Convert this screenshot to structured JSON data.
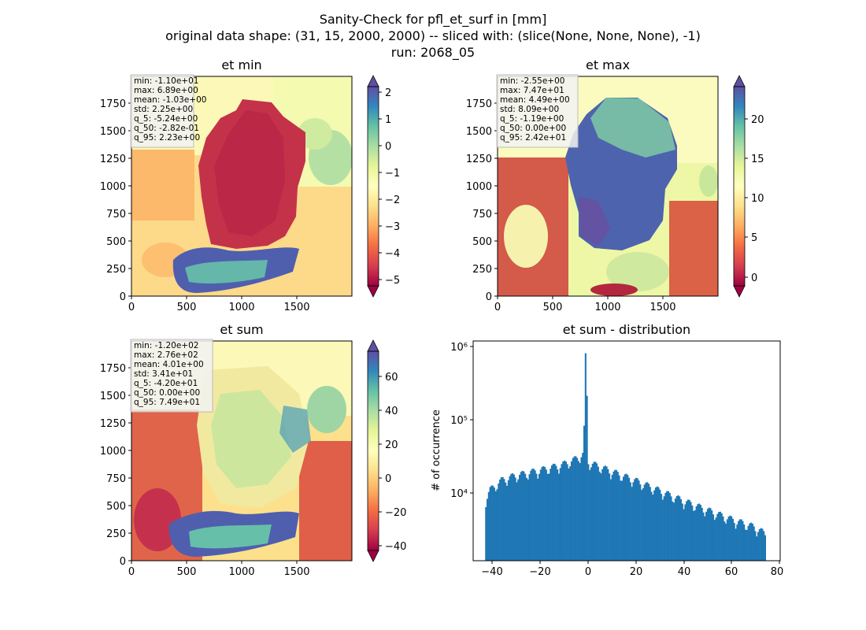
{
  "figure": {
    "title_lines": [
      "Sanity-Check for pfl_et_surf in [mm]",
      "original data shape: (31, 15, 2000, 2000) -- sliced with: (slice(None, None, None), -1)",
      "run: 2068_05"
    ]
  },
  "chart_data": [
    {
      "type": "heatmap",
      "title": "et min",
      "xlim": [
        0,
        2000
      ],
      "ylim": [
        0,
        2000
      ],
      "x_ticks": [
        "0",
        "500",
        "1000",
        "1500"
      ],
      "y_ticks": [
        "0",
        "250",
        "500",
        "750",
        "1000",
        "1250",
        "1500",
        "1750"
      ],
      "colormap": "Spectral",
      "colorbar": {
        "range": [
          -5.4,
          2.4
        ],
        "ticks": [
          "2",
          "1",
          "0",
          "−1",
          "−2",
          "−3",
          "−4",
          "−5"
        ],
        "extend": "both"
      },
      "stats": [
        "min: -1.10e+01",
        "max: 6.89e+00",
        "mean: -1.03e+00",
        "std: 2.25e+00",
        "q_5: -5.24e+00",
        "q_50: -2.82e-01",
        "q_95: 2.23e+00"
      ]
    },
    {
      "type": "heatmap",
      "title": "et max",
      "xlim": [
        0,
        2000
      ],
      "ylim": [
        0,
        2000
      ],
      "x_ticks": [
        "0",
        "500",
        "1000",
        "1500"
      ],
      "y_ticks": [
        "0",
        "250",
        "500",
        "750",
        "1000",
        "1250",
        "1500",
        "1750"
      ],
      "colormap": "Spectral",
      "colorbar": {
        "range": [
          -2,
          24.5
        ],
        "ticks": [
          "20",
          "15",
          "10",
          "5",
          "0"
        ],
        "extend": "both"
      },
      "stats": [
        "min: -2.55e+00",
        "max: 7.47e+01",
        "mean: 4.49e+00",
        "std: 8.09e+00",
        "q_5: -1.19e+00",
        "q_50: 0.00e+00",
        "q_95: 2.42e+01"
      ]
    },
    {
      "type": "heatmap",
      "title": "et sum",
      "xlim": [
        0,
        2000
      ],
      "ylim": [
        0,
        2000
      ],
      "x_ticks": [
        "0",
        "500",
        "1000",
        "1500"
      ],
      "y_ticks": [
        "0",
        "250",
        "500",
        "750",
        "1000",
        "1250",
        "1500",
        "1750"
      ],
      "colormap": "Spectral",
      "colorbar": {
        "range": [
          -47,
          77
        ],
        "ticks": [
          "60",
          "40",
          "20",
          "0",
          "−20",
          "−40"
        ],
        "extend": "both"
      },
      "stats": [
        "min: -1.20e+02",
        "max: 2.76e+02",
        "mean: 4.01e+00",
        "std: 3.41e+01",
        "q_5: -4.20e+01",
        "q_50: 0.00e+00",
        "q_95: 7.49e+01"
      ]
    },
    {
      "type": "bar",
      "title": "et sum - distribution",
      "xlabel": "",
      "ylabel": "# of occurrence",
      "xlim": [
        -47,
        81
      ],
      "y_scale": "log",
      "ylim": [
        1300,
        1200000
      ],
      "x_ticks": [
        "−40",
        "−20",
        "0",
        "20",
        "40",
        "60",
        "80"
      ],
      "y_ticks": [
        "10⁴",
        "10⁵",
        "10⁶"
      ],
      "color": "#1f77b4",
      "bins": {
        "start": -42,
        "end": 75,
        "count": 200
      },
      "envelope": [
        {
          "x": -42,
          "y": 8000
        },
        {
          "x": -40,
          "y": 11000
        },
        {
          "x": -35,
          "y": 15000
        },
        {
          "x": -30,
          "y": 17000
        },
        {
          "x": -20,
          "y": 20000
        },
        {
          "x": -10,
          "y": 24000
        },
        {
          "x": -5,
          "y": 28000
        },
        {
          "x": -1,
          "y": 34000
        },
        {
          "x": 0,
          "y": 820000
        },
        {
          "x": 1,
          "y": 26000
        },
        {
          "x": 10,
          "y": 20000
        },
        {
          "x": 20,
          "y": 15000
        },
        {
          "x": 30,
          "y": 11000
        },
        {
          "x": 40,
          "y": 8000
        },
        {
          "x": 50,
          "y": 6000
        },
        {
          "x": 60,
          "y": 4500
        },
        {
          "x": 70,
          "y": 3500
        },
        {
          "x": 75,
          "y": 2800
        }
      ]
    }
  ]
}
